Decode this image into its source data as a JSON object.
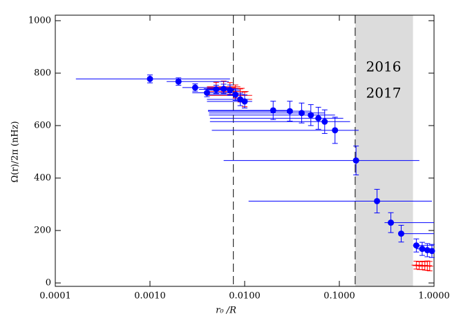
{
  "chart_data": {
    "type": "errorbar-scatter",
    "x_label": "r₀ /R",
    "y_label": "Ω(r)/2π (nHz)",
    "xscale": "log",
    "xlim": [
      0.0001,
      1.0
    ],
    "xticks": [
      {
        "value": 0.0001,
        "label": "0.0001"
      },
      {
        "value": 0.001,
        "label": "0.0010"
      },
      {
        "value": 0.01,
        "label": "0.0100"
      },
      {
        "value": 0.1,
        "label": "0.1000"
      },
      {
        "value": 1.0,
        "label": "1.0000"
      }
    ],
    "ylim": [
      -13,
      1021
    ],
    "yticks": [
      0,
      200,
      400,
      600,
      800,
      1000
    ],
    "vlines": [
      0.0076,
      0.147
    ],
    "shaded_range": [
      0.147,
      0.6
    ],
    "shade_color": "#dcdcdc",
    "series": [
      {
        "name": "2016",
        "color": "#ff0000",
        "x": [
          0.005,
          0.006,
          0.007,
          0.008,
          0.009,
          0.01,
          0.65,
          0.7,
          0.75,
          0.8,
          0.85,
          0.9
        ],
        "values": [
          745,
          748,
          742,
          730,
          715,
          700,
          68,
          66,
          67,
          65,
          66,
          64
        ],
        "x_low": [
          0.004,
          0.004,
          0.004,
          0.004,
          0.004,
          0.004,
          0.58,
          0.6,
          0.62,
          0.64,
          0.66,
          0.68
        ],
        "x_high": [
          0.008,
          0.009,
          0.01,
          0.011,
          0.012,
          0.012,
          0.75,
          0.8,
          0.85,
          0.9,
          0.95,
          0.98
        ],
        "y_err": [
          20,
          22,
          22,
          25,
          25,
          28,
          15,
          15,
          16,
          16,
          18,
          18
        ]
      },
      {
        "name": "2017",
        "color": "#0000ff",
        "x": [
          0.001,
          0.002,
          0.003,
          0.004,
          0.005,
          0.006,
          0.007,
          0.008,
          0.009,
          0.01,
          0.02,
          0.03,
          0.04,
          0.05,
          0.06,
          0.07,
          0.09,
          0.15,
          0.25,
          0.35,
          0.45,
          0.65,
          0.75,
          0.85,
          0.95
        ],
        "values": [
          778,
          768,
          745,
          725,
          738,
          740,
          735,
          718,
          700,
          692,
          658,
          655,
          648,
          640,
          628,
          615,
          582,
          467,
          312,
          230,
          188,
          143,
          130,
          125,
          122
        ],
        "x_low": [
          0.000165,
          0.0015,
          0.0022,
          0.0028,
          0.0033,
          0.0037,
          0.004,
          0.004,
          0.004,
          0.004,
          0.0041,
          0.0041,
          0.0042,
          0.0042,
          0.0043,
          0.0043,
          0.0045,
          0.006,
          0.011,
          0.3,
          0.42,
          0.6,
          0.65,
          0.7,
          0.8
        ],
        "x_high": [
          0.007,
          0.0068,
          0.0072,
          0.0075,
          0.0078,
          0.008,
          0.009,
          0.01,
          0.011,
          0.012,
          0.03,
          0.05,
          0.07,
          0.09,
          0.11,
          0.13,
          0.16,
          0.7,
          0.95,
          1.0,
          1.0,
          1.0,
          1.0,
          1.0,
          1.0
        ],
        "y_err": [
          15,
          14,
          14,
          15,
          16,
          18,
          20,
          22,
          24,
          25,
          35,
          38,
          38,
          40,
          42,
          45,
          50,
          55,
          45,
          38,
          32,
          25,
          25,
          25,
          25
        ]
      }
    ],
    "legend_position": "inside upper right"
  }
}
